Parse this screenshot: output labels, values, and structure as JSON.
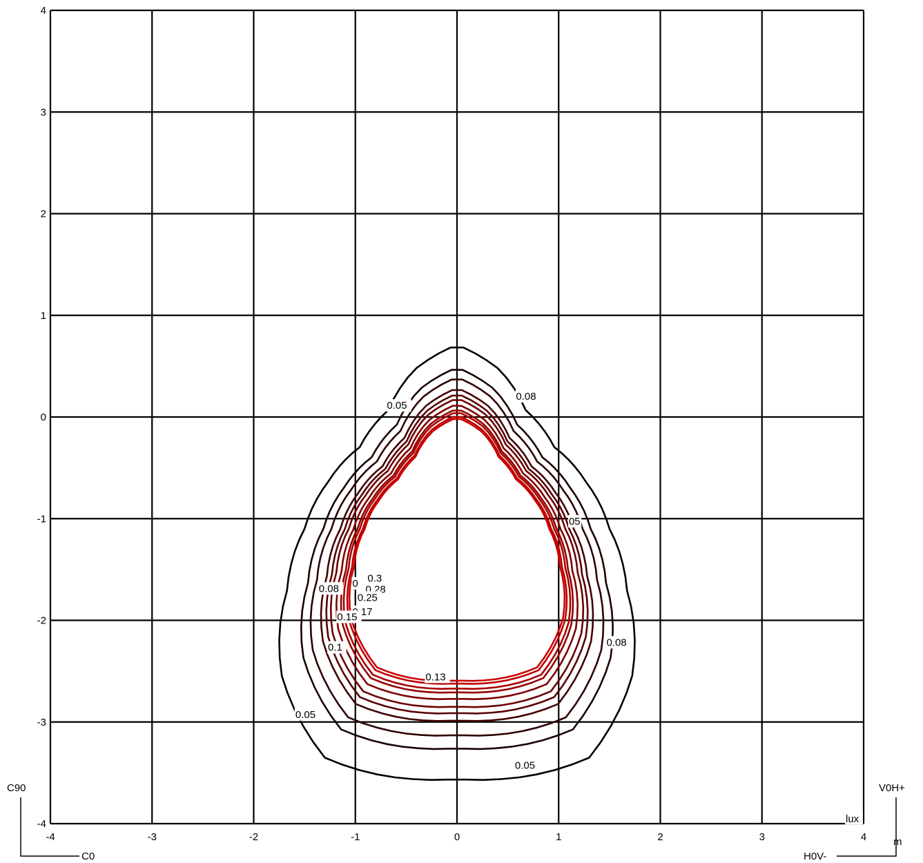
{
  "chart_data": {
    "type": "contour",
    "title": "",
    "xlabel": "",
    "ylabel": "",
    "unit_x": "m",
    "unit_value": "lux",
    "xlim": [
      -4,
      4
    ],
    "ylim": [
      -4,
      4
    ],
    "xticks": [
      -4,
      -3,
      -2,
      -1,
      0,
      1,
      2,
      3,
      4
    ],
    "yticks": [
      -4,
      -3,
      -2,
      -1,
      0,
      1,
      2,
      3,
      4
    ],
    "grid": true,
    "contour_levels": [
      0.05,
      0.08,
      0.1,
      0.13,
      0.15,
      0.17,
      0.2,
      0.23,
      0.25,
      0.28,
      0.3
    ],
    "contour_colors": [
      "#000000",
      "#1a0000",
      "#2e0000",
      "#420000",
      "#560000",
      "#6a0000",
      "#7e0000",
      "#940000",
      "#a80000",
      "#bc0000",
      "#cc0000"
    ],
    "contour_labels": [
      {
        "text": "0.05",
        "x": -0.69,
        "y": 0.08
      },
      {
        "text": "0.08",
        "x": 0.58,
        "y": 0.17
      },
      {
        "text": "05",
        "x": 1.1,
        "y": -1.06
      },
      {
        "text": "0.08",
        "x": -1.36,
        "y": -1.72
      },
      {
        "text": "0.3",
        "x": -0.88,
        "y": -1.62
      },
      {
        "text": "0",
        "x": -1.03,
        "y": -1.67
      },
      {
        "text": "0.28",
        "x": -0.9,
        "y": -1.73
      },
      {
        "text": "0.25",
        "x": -0.98,
        "y": -1.81
      },
      {
        "text": "0.17",
        "x": -1.03,
        "y": -1.95
      },
      {
        "text": "0.15",
        "x": -1.18,
        "y": -2.0
      },
      {
        "text": "0.1",
        "x": -1.27,
        "y": -2.3
      },
      {
        "text": "0.13",
        "x": -0.31,
        "y": -2.59
      },
      {
        "text": "0.08",
        "x": 1.47,
        "y": -2.25
      },
      {
        "text": "0.05",
        "x": -1.59,
        "y": -2.96
      },
      {
        "text": "0.05",
        "x": 0.57,
        "y": -3.46
      }
    ],
    "corner_labels": {
      "top_left": "C90",
      "bottom_left": "C0",
      "top_right": "V0H+",
      "bottom_right": "H0V-",
      "unit_box": "lux",
      "unit_axis": "m"
    }
  }
}
